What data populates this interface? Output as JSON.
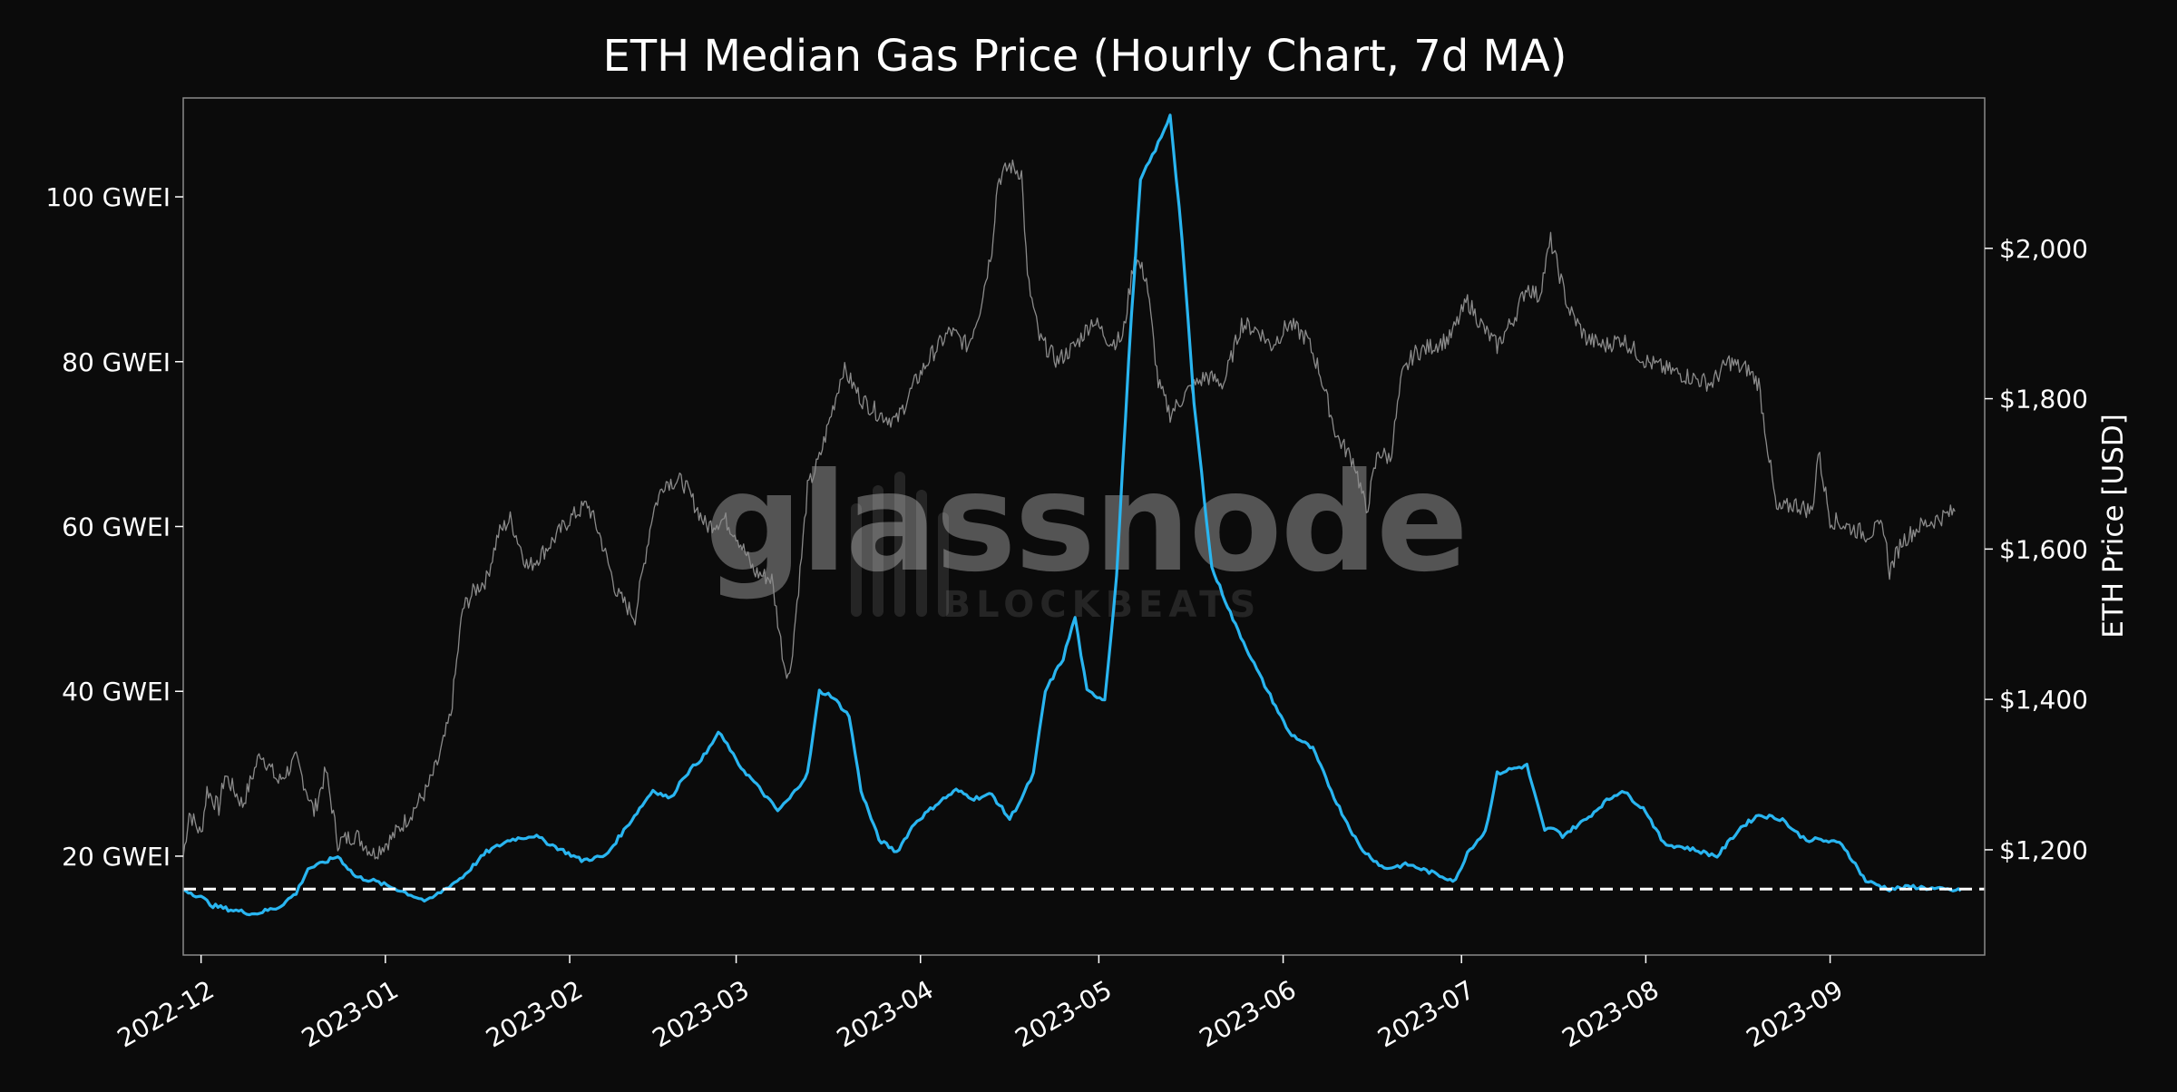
{
  "chart_data": {
    "type": "line",
    "title": "ETH Median Gas Price (Hourly Chart, 7d MA)",
    "xlabel": "",
    "ylabel_left": "",
    "ylabel_right": "ETH Price [USD]",
    "x_ticks": [
      "2022-12",
      "2023-01",
      "2023-02",
      "2023-03",
      "2023-04",
      "2023-05",
      "2023-06",
      "2023-07",
      "2023-08",
      "2023-09"
    ],
    "left_axis": {
      "range": [
        8,
        112
      ],
      "ticks": [
        20,
        40,
        60,
        80,
        100
      ],
      "tick_labels": [
        "20 GWEI",
        "40 GWEI",
        "60 GWEI",
        "80 GWEI",
        "100 GWEI"
      ]
    },
    "right_axis": {
      "range": [
        1060,
        2200
      ],
      "ticks": [
        1200,
        1400,
        1600,
        1800,
        2000
      ],
      "tick_labels": [
        "$1,200",
        "$1,400",
        "$1,600",
        "$1,800",
        "$2,000"
      ]
    },
    "reference_line": {
      "value": 16,
      "axis": "left",
      "style": "dashed",
      "color": "#ffffff"
    },
    "grid": false,
    "watermark": {
      "main": "glassnode",
      "sub": "BLOCKBEATS"
    },
    "colors": {
      "background": "#0b0b0b",
      "gas": "#29b5f0",
      "price": "#8a8a8a",
      "text": "#ffffff",
      "frame": "#8a8a8a"
    },
    "series": [
      {
        "axis": "left",
        "color": "#29b5f0",
        "x": [
          "2022-11-28",
          "2022-12-01",
          "2022-12-03",
          "2022-12-06",
          "2022-12-10",
          "2022-12-14",
          "2022-12-17",
          "2022-12-19",
          "2022-12-21",
          "2022-12-24",
          "2022-12-27",
          "2022-12-30",
          "2023-01-03",
          "2023-01-08",
          "2023-01-14",
          "2023-01-18",
          "2023-01-22",
          "2023-01-26",
          "2023-01-30",
          "2023-02-03",
          "2023-02-07",
          "2023-02-11",
          "2023-02-15",
          "2023-02-18",
          "2023-02-20",
          "2023-02-24",
          "2023-02-26",
          "2023-02-28",
          "2023-03-01",
          "2023-03-04",
          "2023-03-08",
          "2023-03-10",
          "2023-03-13",
          "2023-03-15",
          "2023-03-17",
          "2023-03-20",
          "2023-03-22",
          "2023-03-25",
          "2023-03-28",
          "2023-03-31",
          "2023-04-04",
          "2023-04-07",
          "2023-04-10",
          "2023-04-13",
          "2023-04-16",
          "2023-04-18",
          "2023-04-20",
          "2023-04-22",
          "2023-04-25",
          "2023-04-27",
          "2023-04-29",
          "2023-05-02",
          "2023-05-04",
          "2023-05-06",
          "2023-05-08",
          "2023-05-10",
          "2023-05-12",
          "2023-05-13",
          "2023-05-15",
          "2023-05-17",
          "2023-05-20",
          "2023-05-24",
          "2023-05-28",
          "2023-06-02",
          "2023-06-06",
          "2023-06-10",
          "2023-06-14",
          "2023-06-18",
          "2023-06-22",
          "2023-06-26",
          "2023-06-30",
          "2023-07-02",
          "2023-07-05",
          "2023-07-07",
          "2023-07-09",
          "2023-07-12",
          "2023-07-15",
          "2023-07-16",
          "2023-07-18",
          "2023-07-22",
          "2023-07-25",
          "2023-07-28",
          "2023-08-01",
          "2023-08-04",
          "2023-08-08",
          "2023-08-13",
          "2023-08-17",
          "2023-08-20",
          "2023-08-24",
          "2023-08-26",
          "2023-08-28",
          "2023-08-30",
          "2023-09-03",
          "2023-09-07",
          "2023-09-11",
          "2023-09-15",
          "2023-09-19",
          "2023-09-23"
        ],
        "values": [
          16.0,
          15.0,
          14.0,
          13.5,
          13.0,
          13.8,
          15.5,
          18.5,
          19.0,
          20.0,
          17.5,
          17.0,
          16.0,
          14.5,
          17.5,
          20.5,
          22.0,
          22.5,
          21.0,
          19.5,
          20.0,
          24.0,
          28.0,
          27.0,
          29.5,
          32.5,
          35.0,
          33.0,
          31.5,
          29.0,
          25.5,
          27.0,
          30.0,
          40.0,
          39.5,
          37.0,
          28.0,
          22.0,
          20.5,
          24.0,
          26.5,
          28.0,
          27.0,
          27.5,
          24.5,
          27.0,
          30.0,
          40.0,
          44.0,
          49.0,
          40.0,
          39.0,
          54.0,
          80.0,
          102.0,
          105.0,
          108.0,
          110.0,
          95.0,
          75.0,
          55.0,
          48.0,
          42.0,
          35.0,
          33.0,
          26.5,
          21.0,
          18.5,
          19.0,
          18.0,
          17.0,
          20.5,
          23.0,
          30.0,
          30.5,
          31.0,
          23.0,
          23.5,
          22.5,
          24.5,
          26.5,
          28.0,
          25.5,
          21.5,
          21.0,
          20.0,
          23.5,
          25.0,
          24.5,
          23.0,
          22.0,
          22.0,
          21.5,
          17.0,
          16.0,
          16.3,
          16.0,
          15.8
        ]
      },
      {
        "axis": "right",
        "color": "#8a8a8a",
        "x": [
          "2022-11-28",
          "2022-11-29",
          "2022-12-01",
          "2022-12-02",
          "2022-12-04",
          "2022-12-05",
          "2022-12-08",
          "2022-12-11",
          "2022-12-14",
          "2022-12-17",
          "2022-12-20",
          "2022-12-22",
          "2022-12-24",
          "2022-12-27",
          "2022-12-30",
          "2023-01-02",
          "2023-01-05",
          "2023-01-08",
          "2023-01-10",
          "2023-01-12",
          "2023-01-14",
          "2023-01-16",
          "2023-01-18",
          "2023-01-20",
          "2023-01-22",
          "2023-01-25",
          "2023-01-28",
          "2023-02-01",
          "2023-02-04",
          "2023-02-06",
          "2023-02-09",
          "2023-02-12",
          "2023-02-15",
          "2023-02-17",
          "2023-02-20",
          "2023-02-24",
          "2023-02-27",
          "2023-03-01",
          "2023-03-04",
          "2023-03-07",
          "2023-03-09",
          "2023-03-10",
          "2023-03-12",
          "2023-03-13",
          "2023-03-15",
          "2023-03-17",
          "2023-03-19",
          "2023-03-22",
          "2023-03-25",
          "2023-03-28",
          "2023-03-31",
          "2023-04-03",
          "2023-04-06",
          "2023-04-09",
          "2023-04-11",
          "2023-04-13",
          "2023-04-14",
          "2023-04-16",
          "2023-04-18",
          "2023-04-19",
          "2023-04-21",
          "2023-04-24",
          "2023-04-27",
          "2023-04-30",
          "2023-05-03",
          "2023-05-05",
          "2023-05-07",
          "2023-05-09",
          "2023-05-11",
          "2023-05-13",
          "2023-05-16",
          "2023-05-19",
          "2023-05-22",
          "2023-05-25",
          "2023-05-28",
          "2023-05-30",
          "2023-06-02",
          "2023-06-05",
          "2023-06-07",
          "2023-06-10",
          "2023-06-13",
          "2023-06-15",
          "2023-06-17",
          "2023-06-19",
          "2023-06-21",
          "2023-06-23",
          "2023-06-26",
          "2023-06-29",
          "2023-07-02",
          "2023-07-05",
          "2023-07-07",
          "2023-07-10",
          "2023-07-12",
          "2023-07-14",
          "2023-07-16",
          "2023-07-19",
          "2023-07-22",
          "2023-07-25",
          "2023-07-28",
          "2023-08-01",
          "2023-08-04",
          "2023-08-08",
          "2023-08-12",
          "2023-08-15",
          "2023-08-17",
          "2023-08-18",
          "2023-08-20",
          "2023-08-23",
          "2023-08-26",
          "2023-08-29",
          "2023-08-30",
          "2023-09-01",
          "2023-09-04",
          "2023-09-07",
          "2023-09-10",
          "2023-09-11",
          "2023-09-13",
          "2023-09-16",
          "2023-09-19",
          "2023-09-22"
        ],
        "values": [
          1190,
          1250,
          1220,
          1280,
          1255,
          1300,
          1260,
          1330,
          1290,
          1320,
          1250,
          1305,
          1210,
          1220,
          1195,
          1215,
          1245,
          1280,
          1320,
          1380,
          1520,
          1545,
          1560,
          1620,
          1640,
          1575,
          1600,
          1640,
          1660,
          1620,
          1540,
          1510,
          1650,
          1690,
          1690,
          1630,
          1640,
          1620,
          1570,
          1560,
          1450,
          1430,
          1590,
          1680,
          1720,
          1780,
          1840,
          1800,
          1780,
          1770,
          1820,
          1860,
          1890,
          1870,
          1920,
          2000,
          2090,
          2110,
          2100,
          1960,
          1880,
          1850,
          1870,
          1905,
          1875,
          1880,
          1990,
          1960,
          1820,
          1780,
          1810,
          1830,
          1820,
          1900,
          1890,
          1870,
          1900,
          1880,
          1840,
          1750,
          1715,
          1650,
          1730,
          1720,
          1830,
          1860,
          1870,
          1880,
          1930,
          1890,
          1870,
          1910,
          1950,
          1935,
          2010,
          1920,
          1880,
          1870,
          1880,
          1850,
          1840,
          1830,
          1820,
          1850,
          1840,
          1840,
          1820,
          1650,
          1660,
          1650,
          1730,
          1640,
          1630,
          1620,
          1630,
          1570,
          1610,
          1630,
          1640,
          1650
        ]
      }
    ]
  }
}
